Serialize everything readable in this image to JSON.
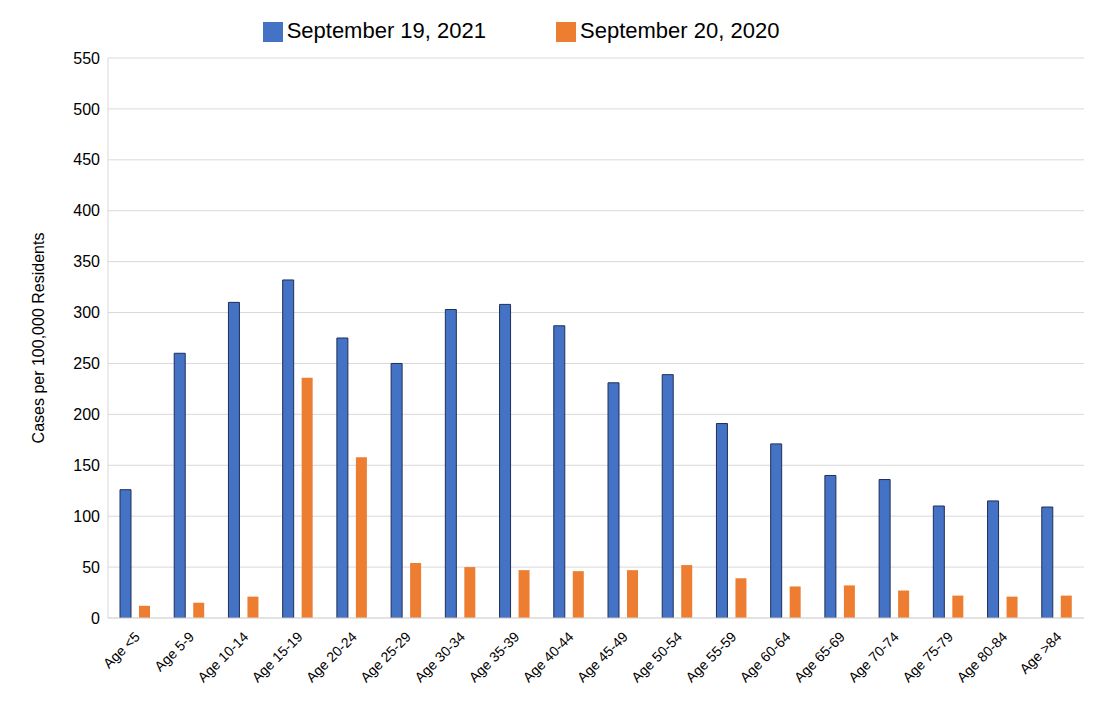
{
  "chart_data": {
    "type": "bar",
    "y_label": "Cases per 100,000 Residents",
    "categories": [
      "Age <5",
      "Age 5-9",
      "Age 10-14",
      "Age 15-19",
      "Age 20-24",
      "Age 25-29",
      "Age 30-34",
      "Age 35-39",
      "Age 40-44",
      "Age 45-49",
      "Age 50-54",
      "Age 55-59",
      "Age 60-64",
      "Age 65-69",
      "Age 70-74",
      "Age 75-79",
      "Age 80-84",
      "Age >84"
    ],
    "series": [
      {
        "name": "September 19,  2021",
        "color": "#4472c4",
        "values": [
          126,
          260,
          310,
          332,
          275,
          250,
          303,
          308,
          287,
          231,
          239,
          191,
          171,
          140,
          136,
          110,
          115,
          109
        ]
      },
      {
        "name": "September 20,  2020",
        "color": "#ed7d31",
        "values": [
          12,
          15,
          21,
          236,
          158,
          54,
          50,
          47,
          46,
          47,
          52,
          39,
          31,
          32,
          27,
          22,
          21,
          22
        ]
      }
    ],
    "ylim": [
      0,
      550
    ],
    "yticks": [
      0,
      50,
      100,
      150,
      200,
      250,
      300,
      350,
      400,
      450,
      500,
      550
    ],
    "grid": true,
    "legend": "top"
  }
}
